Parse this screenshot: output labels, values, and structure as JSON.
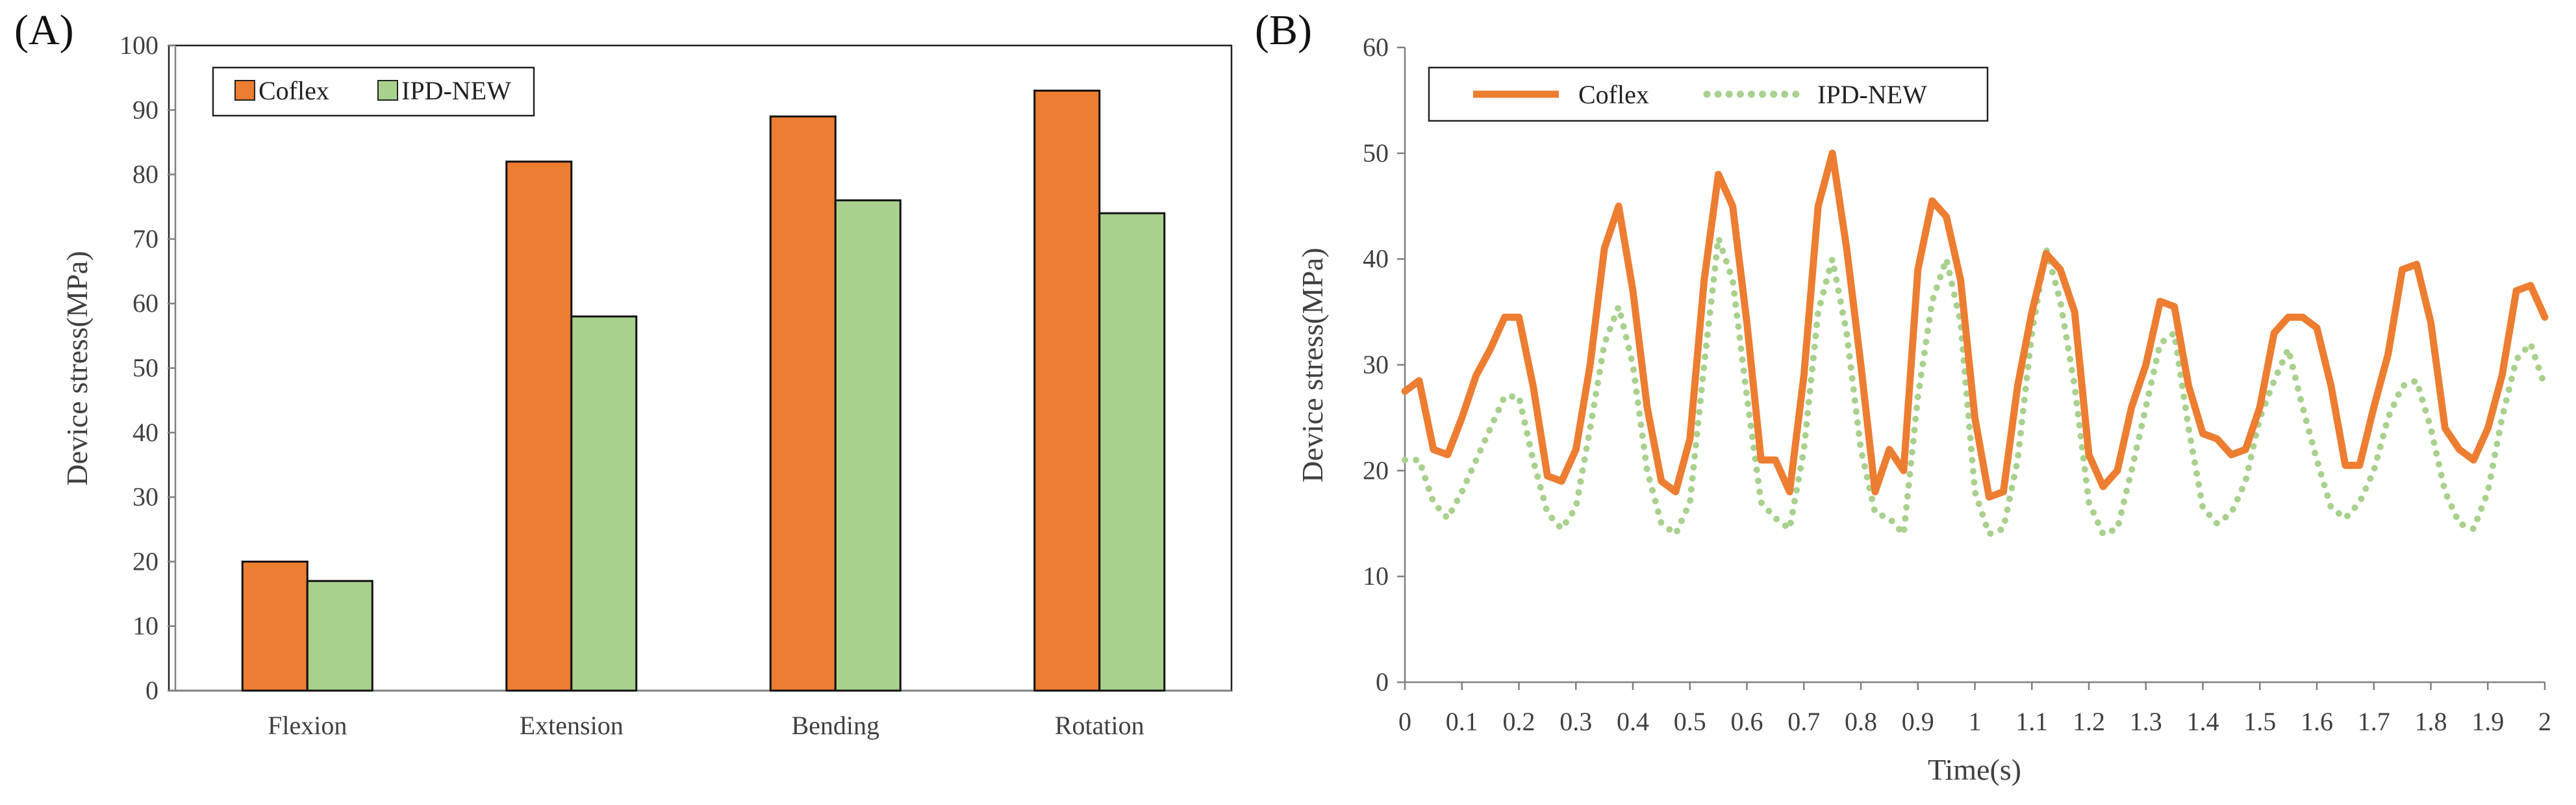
{
  "chart_data": [
    {
      "panel": "(A)",
      "type": "bar",
      "title": "",
      "xlabel": "",
      "ylabel": "Device stress(MPa)",
      "ylim": [
        0,
        100
      ],
      "ytick_step": 10,
      "yticks": [
        "0",
        "10",
        "20",
        "30",
        "40",
        "50",
        "60",
        "70",
        "80",
        "90",
        "100"
      ],
      "categories": [
        "Flexion",
        "Extension",
        "Bending",
        "Rotation"
      ],
      "series": [
        {
          "name": "Coflex",
          "color": "#ed7d31",
          "values": [
            20,
            82,
            89,
            93
          ]
        },
        {
          "name": "IPD-NEW",
          "color": "#a9d18e",
          "values": [
            17,
            58,
            76,
            74
          ]
        }
      ],
      "legend": "top-left",
      "grid": false
    },
    {
      "panel": "(B)",
      "type": "line",
      "title": "",
      "xlabel": "Time(s)",
      "ylabel": "Device stress(MPa)",
      "xlim": [
        0,
        2
      ],
      "ylim": [
        0,
        60
      ],
      "ytick_step": 10,
      "yticks": [
        "0",
        "10",
        "20",
        "30",
        "40",
        "50",
        "60"
      ],
      "xticks": [
        "0",
        "0.1",
        "0.2",
        "0.3",
        "0.4",
        "0.5",
        "0.6",
        "0.7",
        "0.8",
        "0.9",
        "1",
        "1.1",
        "1.2",
        "1.3",
        "1.4",
        "1.5",
        "1.6",
        "1.7",
        "1.8",
        "1.9",
        "2"
      ],
      "series": [
        {
          "name": "Coflex",
          "color": "#ed7d31",
          "style": "solid",
          "x": [
            0,
            0.025,
            0.05,
            0.075,
            0.1,
            0.125,
            0.15,
            0.175,
            0.2,
            0.225,
            0.25,
            0.275,
            0.3,
            0.325,
            0.35,
            0.375,
            0.4,
            0.425,
            0.45,
            0.475,
            0.5,
            0.525,
            0.55,
            0.575,
            0.6,
            0.625,
            0.65,
            0.675,
            0.7,
            0.725,
            0.75,
            0.775,
            0.8,
            0.825,
            0.85,
            0.875,
            0.9,
            0.925,
            0.95,
            0.975,
            1,
            1.025,
            1.05,
            1.075,
            1.1,
            1.125,
            1.15,
            1.175,
            1.2,
            1.225,
            1.25,
            1.275,
            1.3,
            1.325,
            1.35,
            1.375,
            1.4,
            1.425,
            1.45,
            1.475,
            1.5,
            1.525,
            1.55,
            1.575,
            1.6,
            1.625,
            1.65,
            1.675,
            1.7,
            1.725,
            1.75,
            1.775,
            1.8,
            1.825,
            1.85,
            1.875,
            1.9,
            1.925,
            1.95,
            1.975,
            2
          ],
          "y": [
            27.5,
            28.5,
            22,
            21.5,
            25,
            29,
            31.5,
            34.5,
            34.5,
            28,
            19.5,
            19,
            22,
            30,
            41,
            45,
            37,
            26,
            19,
            18,
            23,
            38,
            48,
            45,
            34,
            21,
            21,
            18,
            29,
            45,
            50,
            41,
            30,
            18,
            22,
            20,
            39,
            45.5,
            44,
            38,
            25,
            17.5,
            18,
            28,
            35,
            40.5,
            39,
            35,
            21.5,
            18.5,
            20,
            26,
            30,
            36,
            35.5,
            28,
            23.5,
            23,
            21.5,
            22,
            26,
            33,
            34.5,
            34.5,
            33.5,
            28,
            20.5,
            20.5,
            26,
            31,
            39,
            39.5,
            34,
            24,
            22,
            21,
            24,
            29,
            37,
            37.5,
            34.5
          ]
        },
        {
          "name": "IPD-NEW",
          "color": "#a9d18e",
          "style": "dotted",
          "x": [
            0,
            0.025,
            0.05,
            0.075,
            0.1,
            0.125,
            0.15,
            0.175,
            0.2,
            0.225,
            0.25,
            0.275,
            0.3,
            0.325,
            0.35,
            0.375,
            0.4,
            0.425,
            0.45,
            0.475,
            0.5,
            0.525,
            0.55,
            0.575,
            0.6,
            0.625,
            0.65,
            0.675,
            0.7,
            0.725,
            0.75,
            0.775,
            0.8,
            0.825,
            0.85,
            0.875,
            0.9,
            0.925,
            0.95,
            0.975,
            1,
            1.025,
            1.05,
            1.075,
            1.1,
            1.125,
            1.15,
            1.175,
            1.2,
            1.225,
            1.25,
            1.275,
            1.3,
            1.325,
            1.35,
            1.375,
            1.4,
            1.425,
            1.45,
            1.475,
            1.5,
            1.525,
            1.55,
            1.575,
            1.6,
            1.625,
            1.65,
            1.675,
            1.7,
            1.725,
            1.75,
            1.775,
            1.8,
            1.825,
            1.85,
            1.875,
            1.9,
            1.925,
            1.95,
            1.975,
            2
          ],
          "y": [
            21,
            21,
            17,
            15.5,
            18,
            21,
            24,
            27,
            27,
            21,
            16,
            14.5,
            16.5,
            24,
            32,
            35.5,
            30,
            20,
            15,
            14,
            17,
            30,
            42,
            38,
            27,
            17,
            15.5,
            14.5,
            22,
            35,
            40,
            33,
            22,
            16,
            15.5,
            14,
            27,
            36,
            40,
            34,
            18,
            14,
            14.5,
            21,
            33,
            41,
            36,
            28,
            17,
            14,
            14.5,
            20,
            26,
            32,
            33,
            24,
            16.5,
            15,
            16,
            19,
            25,
            28.5,
            31.5,
            26,
            21,
            16.5,
            15.5,
            17,
            20,
            25,
            28,
            28.5,
            24,
            18,
            15,
            14.5,
            18,
            25,
            30.5,
            32,
            28
          ]
        }
      ],
      "legend": "top-left",
      "grid": false
    }
  ]
}
